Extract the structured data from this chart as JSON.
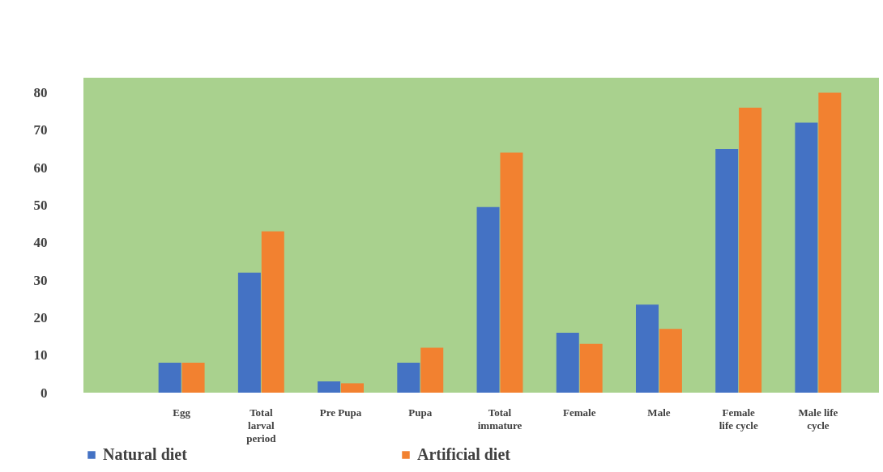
{
  "chart_data": {
    "type": "bar",
    "categories": [
      "Egg",
      "Total larval period",
      "Pre Pupa",
      "Pupa",
      "Total immature",
      "Female",
      "Male",
      "Female life cycle",
      "Male life cycle"
    ],
    "series": [
      {
        "name": "Natural diet",
        "color": "#4472c4",
        "values": [
          8,
          32,
          3,
          8,
          49.5,
          16,
          23.5,
          65,
          72
        ]
      },
      {
        "name": "Artificial diet",
        "color": "#f28130",
        "values": [
          8,
          43,
          2.5,
          12,
          64,
          13,
          17,
          76,
          80
        ]
      }
    ],
    "ylim": [
      0,
      84
    ],
    "yticks": [
      0,
      10,
      20,
      30,
      40,
      50,
      60,
      70,
      80
    ],
    "grid": false,
    "legend": "bottom"
  }
}
